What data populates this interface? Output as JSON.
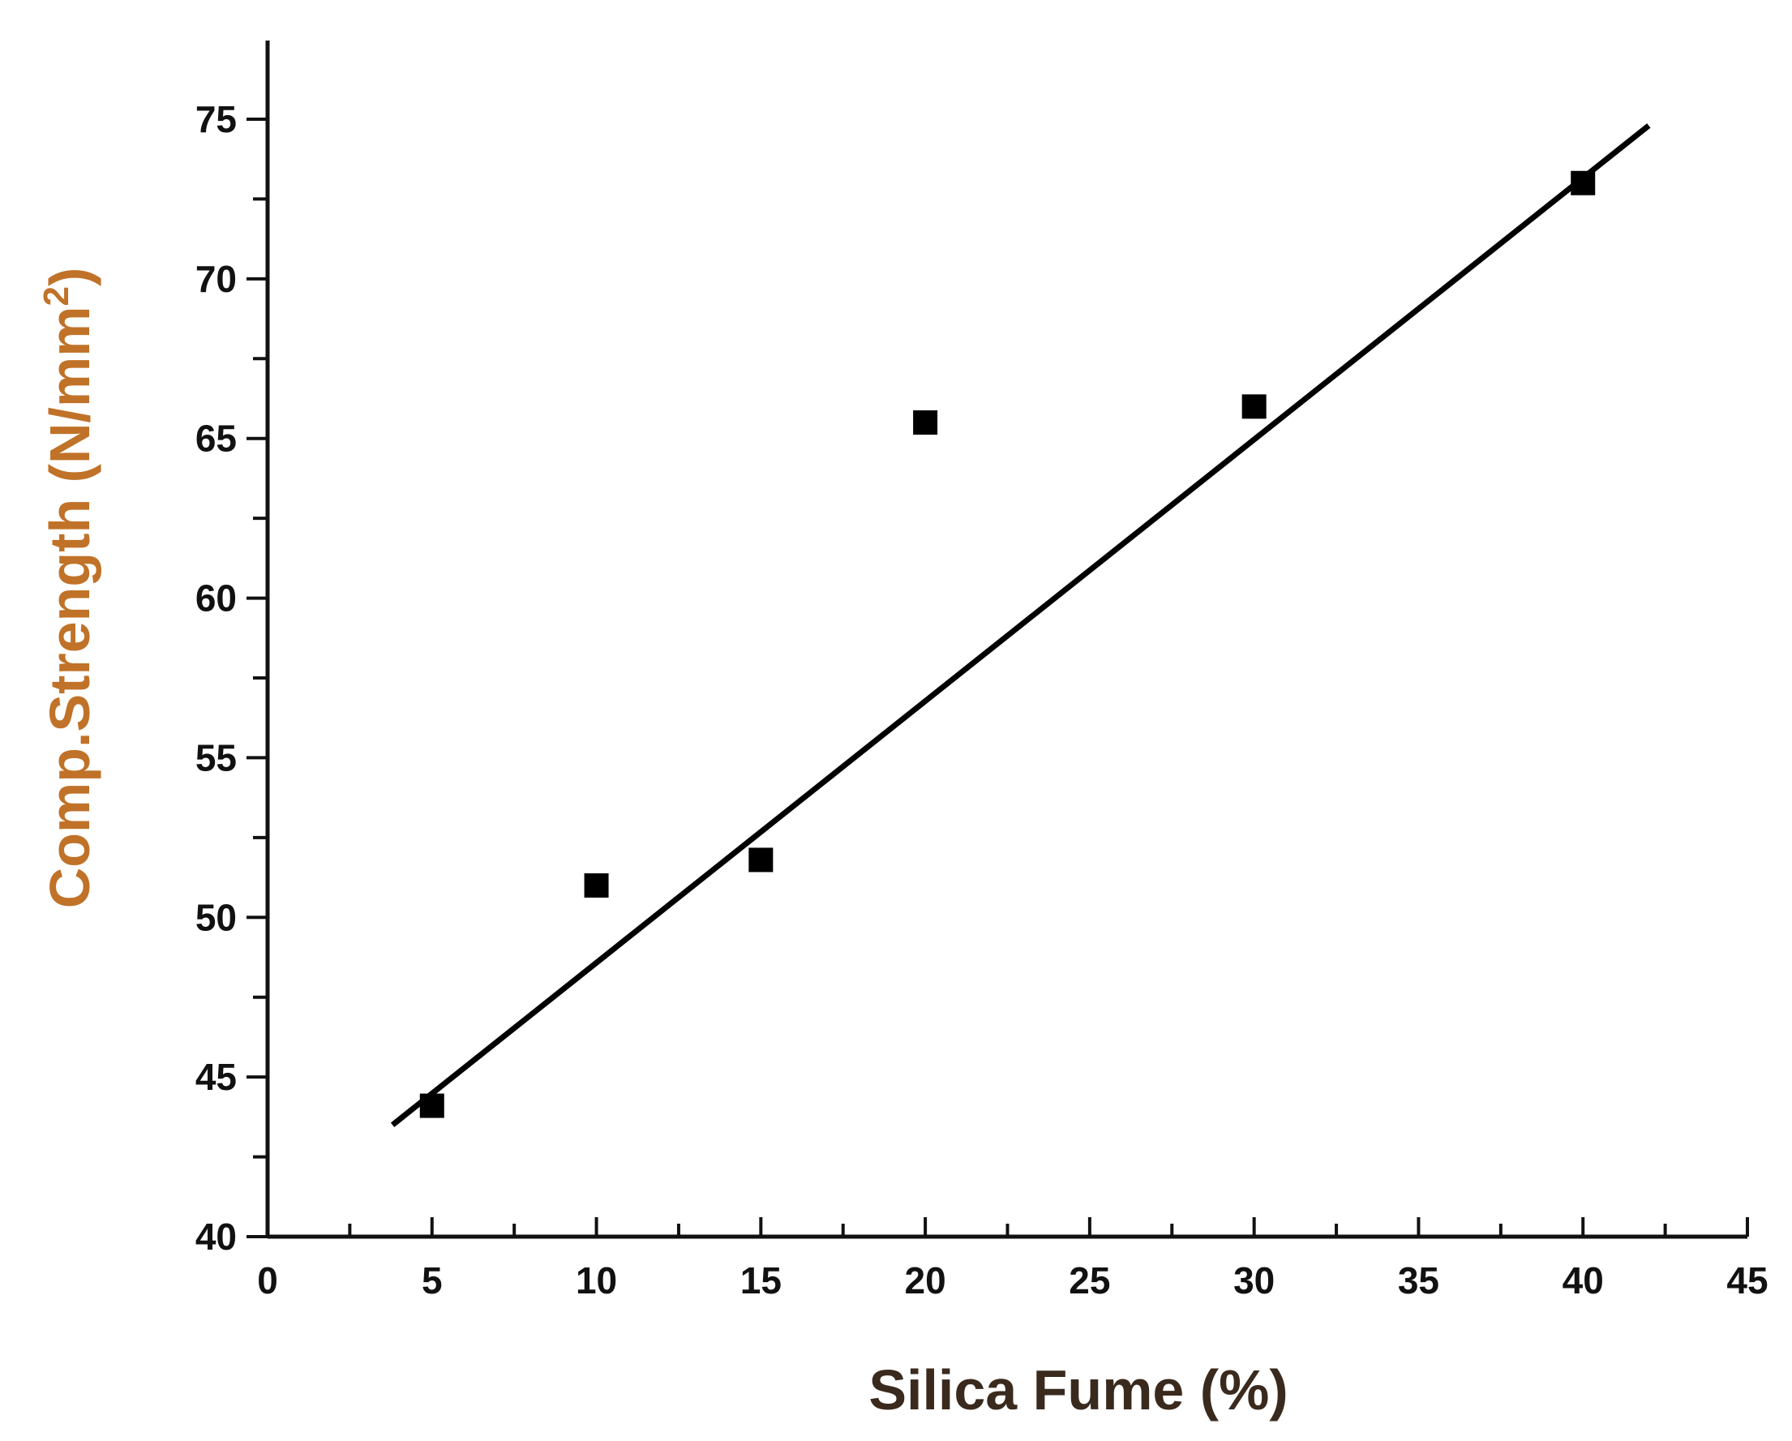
{
  "chart_data": {
    "type": "scatter",
    "title": "",
    "xlabel": "Silica Fume (%)",
    "ylabel_main": "Comp.Strength (N/mm",
    "ylabel_sup": "2",
    "ylabel_close": ")",
    "xlim": [
      0,
      45
    ],
    "ylim": [
      40,
      77.5
    ],
    "x_ticks": [
      "0",
      "5",
      "10",
      "15",
      "20",
      "25",
      "30",
      "35",
      "40",
      "45"
    ],
    "y_ticks": [
      "40",
      "45",
      "50",
      "55",
      "60",
      "65",
      "70",
      "75"
    ],
    "grid": false,
    "legend": "none",
    "points": [
      {
        "x": 5,
        "y": 44.1
      },
      {
        "x": 10,
        "y": 51.0
      },
      {
        "x": 15,
        "y": 51.8
      },
      {
        "x": 20,
        "y": 65.5
      },
      {
        "x": 30,
        "y": 66.0
      },
      {
        "x": 40,
        "y": 73.0
      }
    ],
    "fit_line": {
      "x": [
        3.8,
        42.0
      ],
      "y": [
        43.5,
        74.8
      ]
    },
    "colors": {
      "marker": "#000000",
      "line": "#000000",
      "axis": "#111111",
      "x_title": "#3a2a1e",
      "y_title": "#c07228"
    }
  }
}
